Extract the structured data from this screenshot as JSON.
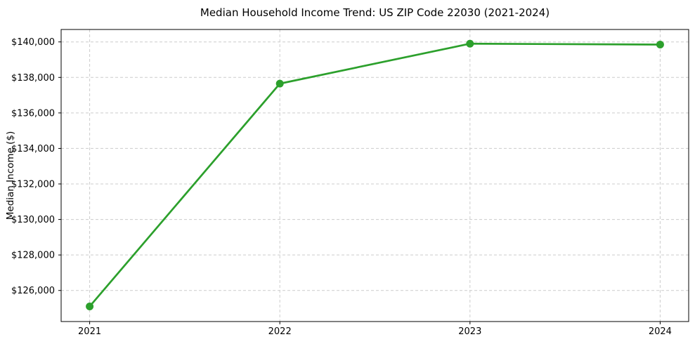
{
  "chart_data": {
    "type": "line",
    "title": "Median Household Income Trend: US ZIP Code 22030 (2021-2024)",
    "xlabel": "",
    "ylabel": "Median Income ($)",
    "x": [
      2021,
      2022,
      2023,
      2024
    ],
    "xtick_labels": [
      "2021",
      "2022",
      "2023",
      "2024"
    ],
    "yticks": [
      126000,
      128000,
      130000,
      132000,
      134000,
      136000,
      138000,
      140000
    ],
    "ytick_labels": [
      "$126,000",
      "$128,000",
      "$130,000",
      "$132,000",
      "$134,000",
      "$136,000",
      "$138,000",
      "$140,000"
    ],
    "series": [
      {
        "name": "median-household-income",
        "values": [
          125100,
          137650,
          139900,
          139850
        ]
      }
    ],
    "xlim": [
      2020.85,
      2024.15
    ],
    "ylim": [
      124250,
      140700
    ],
    "grid": true,
    "grid_style": "dashed",
    "marker": "circle",
    "legend_position": "none"
  },
  "colors": {
    "line": "#2ca02c",
    "marker": "#2ca02c",
    "grid": "#cccccc",
    "spine": "#000000",
    "text": "#000000",
    "background": "#ffffff"
  }
}
